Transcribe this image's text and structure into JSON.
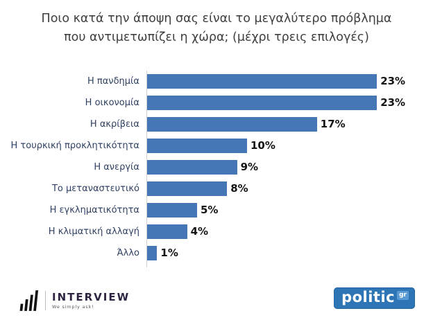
{
  "title": {
    "text": "Ποιο κατά την άποψη σας είναι το μεγαλύτερο πρόβλημα που αντιμετωπίζει η χώρα; (μέχρι τρεις επιλογές)"
  },
  "chart_data": {
    "type": "bar",
    "orientation": "horizontal",
    "title": "Ποιο κατά την άποψη σας είναι το μεγαλύτερο πρόβλημα που αντιμετωπίζει η χώρα; (μέχρι τρεις επιλογές)",
    "categories": [
      "Η πανδημία",
      "Η οικονομία",
      "Η ακρίβεια",
      "Η τουρκική προκλητικότητα",
      "Η ανεργία",
      "Το μεταναστευτικό",
      "Η εγκληματικότητα",
      "Η κλιματική αλλαγή",
      "Άλλο"
    ],
    "values": [
      23,
      23,
      17,
      10,
      9,
      8,
      5,
      4,
      1
    ],
    "value_labels": [
      "23%",
      "23%",
      "17%",
      "10%",
      "9%",
      "8%",
      "5%",
      "4%",
      "1%"
    ],
    "xlim": [
      0,
      23.5
    ],
    "grid": false,
    "legend": "none",
    "bar_color": "#4577B6",
    "value_label_color": "#141414",
    "category_label_color": "#2f4061"
  },
  "footer": {
    "interview": {
      "name": "INTERVIEW",
      "tagline": "We simply ask!"
    },
    "politic": {
      "name": "politic",
      "suffix": "gr",
      "brand_color": "#2e75b6"
    }
  }
}
